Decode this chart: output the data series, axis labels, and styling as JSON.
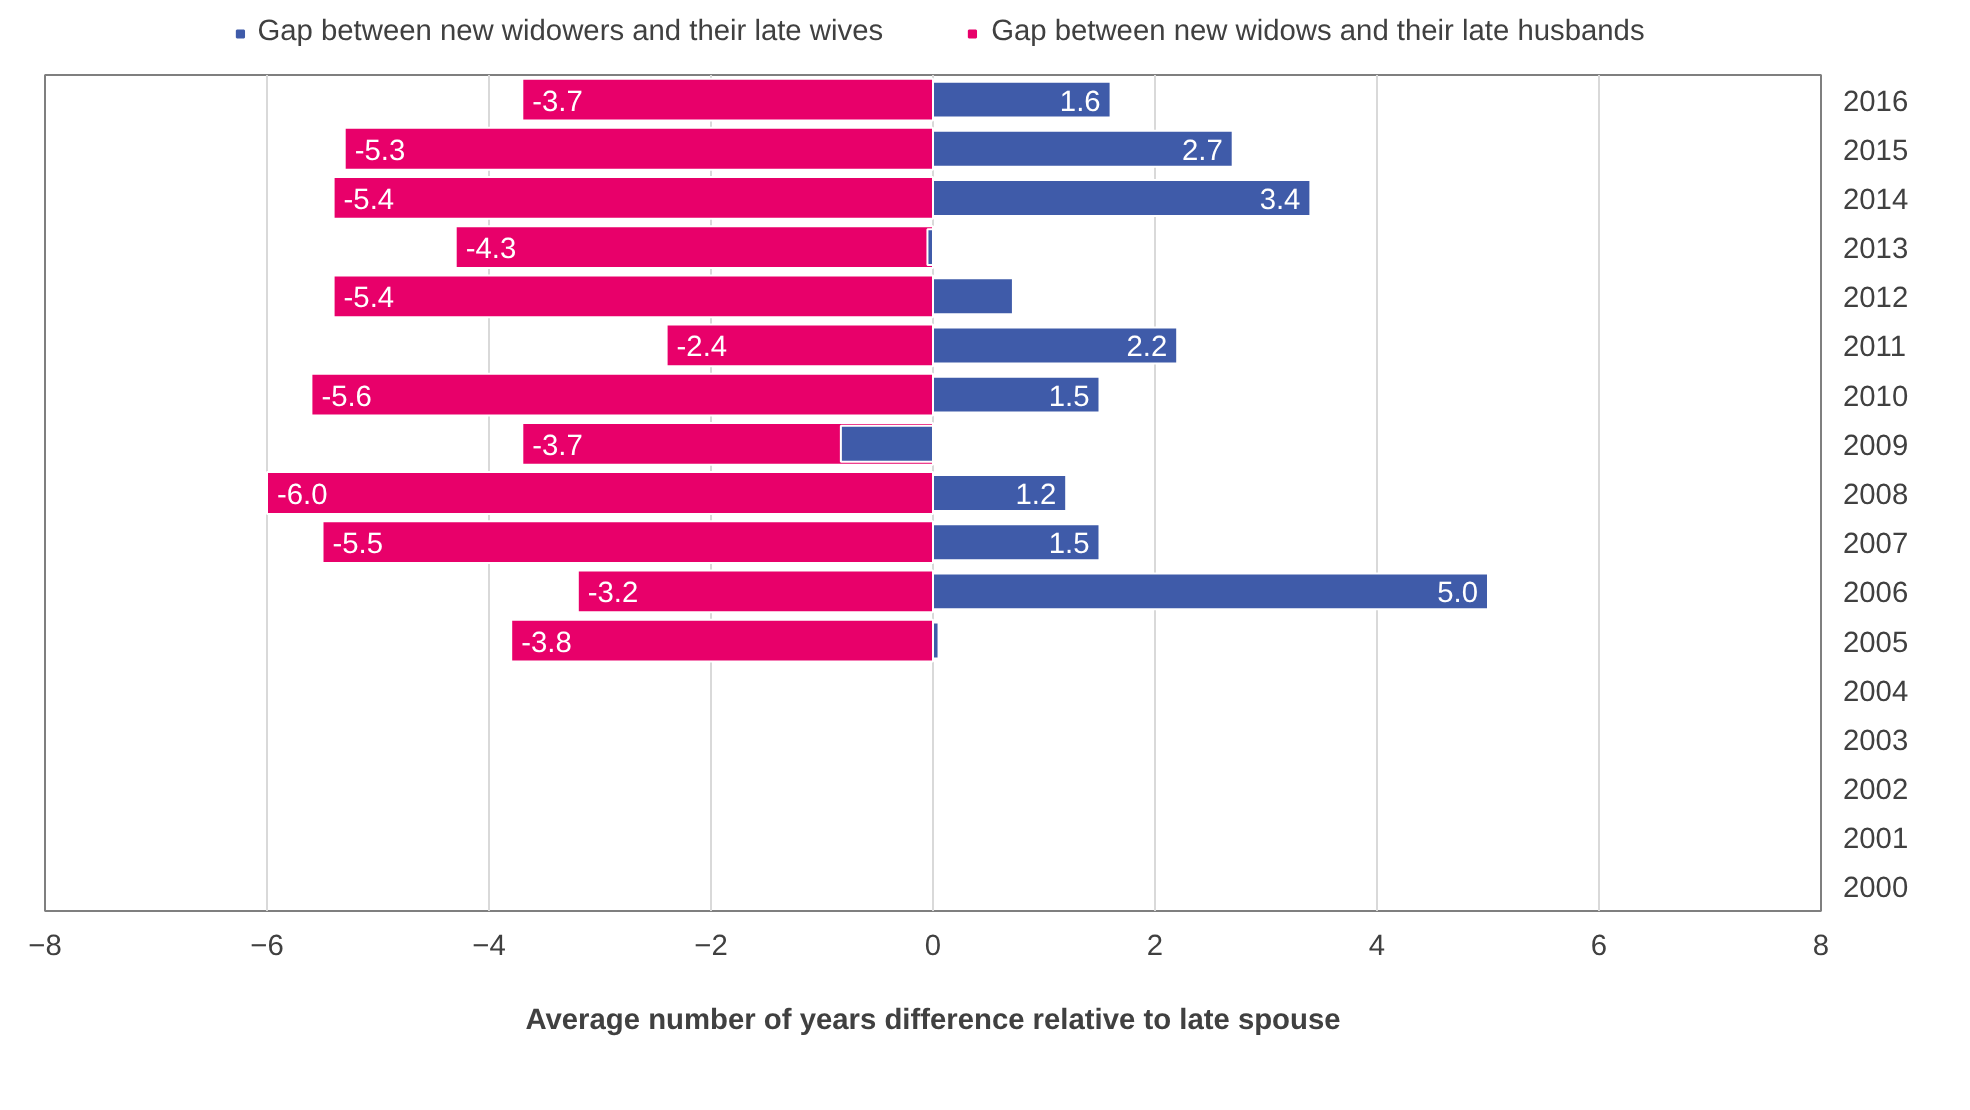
{
  "chart_data": {
    "type": "bar",
    "orientation": "horizontal",
    "xlabel": "Average number of years difference relative to late spouse",
    "categories": [
      "2016",
      "2015",
      "2014",
      "2013",
      "2012",
      "2011",
      "2010",
      "2009",
      "2008",
      "2007",
      "2006",
      "2005",
      "2004",
      "2003",
      "2002",
      "2001",
      "2000"
    ],
    "series": [
      {
        "name": "Gap between new widowers and their late wives",
        "color": "#3f5ba9",
        "values": [
          1.6,
          2.7,
          3.4,
          -0.05,
          0.72,
          2.2,
          1.5,
          -0.83,
          1.2,
          1.5,
          5.0,
          0.05,
          null,
          null,
          null,
          null,
          null
        ],
        "value_labels": [
          "1.6",
          "2.7",
          "3.4",
          null,
          null,
          "2.2",
          "1.5",
          null,
          "1.2",
          "1.5",
          "5.0",
          null,
          null,
          null,
          null,
          null,
          null
        ]
      },
      {
        "name": "Gap between new widows and their late husbands",
        "color": "#e8006a",
        "values": [
          -3.7,
          -5.3,
          -5.4,
          -4.3,
          -5.4,
          -2.4,
          -5.6,
          -3.7,
          -6.0,
          -5.5,
          -3.2,
          -3.8,
          null,
          null,
          null,
          null,
          null
        ],
        "value_labels": [
          "-3.7",
          "-5.3",
          "-5.4",
          "-4.3",
          "-5.4",
          "-2.4",
          "-5.6",
          "-3.7",
          "-6.0",
          "-5.5",
          "-3.2",
          "-3.8",
          null,
          null,
          null,
          null,
          null
        ]
      }
    ],
    "xlim": [
      -8,
      8
    ],
    "xticks": [
      -8,
      -6,
      -4,
      -2,
      0,
      2,
      4,
      6,
      8
    ],
    "grid": "x",
    "legend": "top"
  }
}
